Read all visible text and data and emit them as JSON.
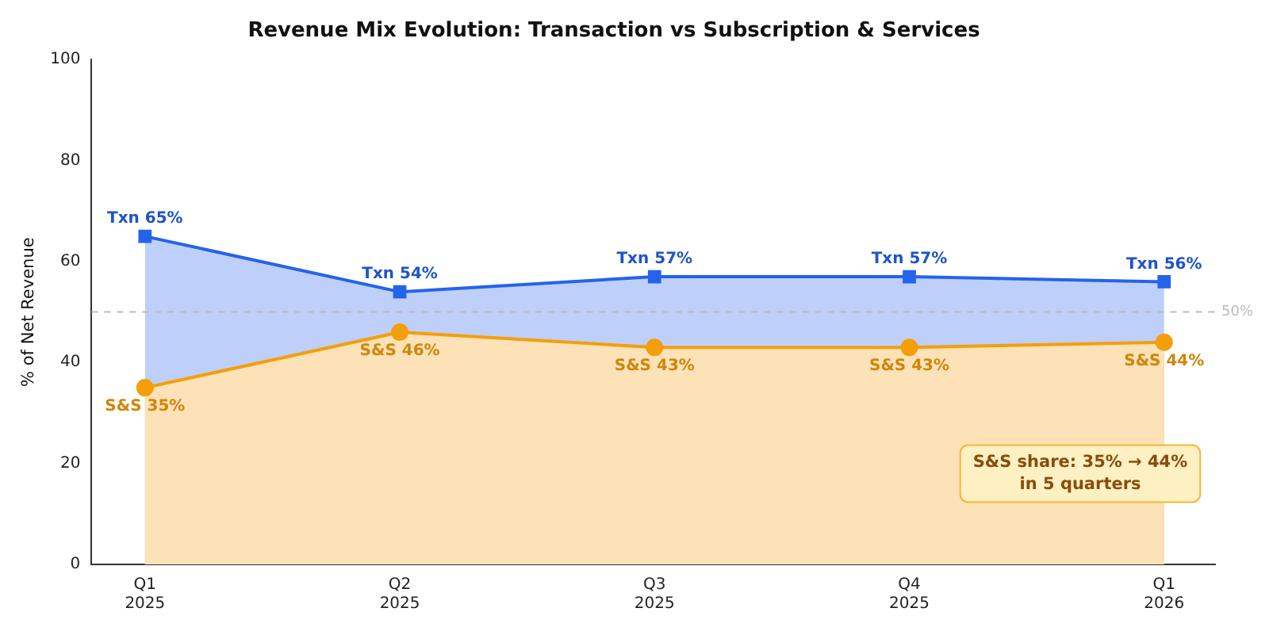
{
  "chart_data": {
    "type": "line",
    "title": "Revenue Mix Evolution: Transaction vs Subscription & Services",
    "ylabel": "% of Net Revenue",
    "categories": [
      "Q1 2025",
      "Q2 2025",
      "Q3 2025",
      "Q4 2025",
      "Q1 2026"
    ],
    "series": [
      {
        "type": "area",
        "color": "#2563eb",
        "marker": "square",
        "values": [
          65,
          54,
          57,
          57,
          56
        ],
        "value_labels": [
          "Txn 65%",
          "Txn 54%",
          "Txn 57%",
          "Txn 57%",
          "Txn 56%"
        ]
      },
      {
        "type": "area",
        "color": "#f59e0b",
        "marker": "circle",
        "values": [
          35,
          46,
          43,
          43,
          44
        ],
        "value_labels": [
          "S&S 35%",
          "S&S 46%",
          "S&S 43%",
          "S&S 43%",
          "S&S 44%"
        ]
      }
    ],
    "ylim": [
      0,
      100
    ],
    "yticks": [
      0,
      20,
      40,
      60,
      80,
      100
    ],
    "grid": false,
    "legend": false,
    "ref_lines": [
      {
        "axis": "y",
        "value": 50,
        "label": "50%",
        "color": "#bbbbbb",
        "line_style": "dashed"
      }
    ],
    "annotations": [
      "S&S share: 35% → 44%\nin 5 quarters"
    ]
  }
}
